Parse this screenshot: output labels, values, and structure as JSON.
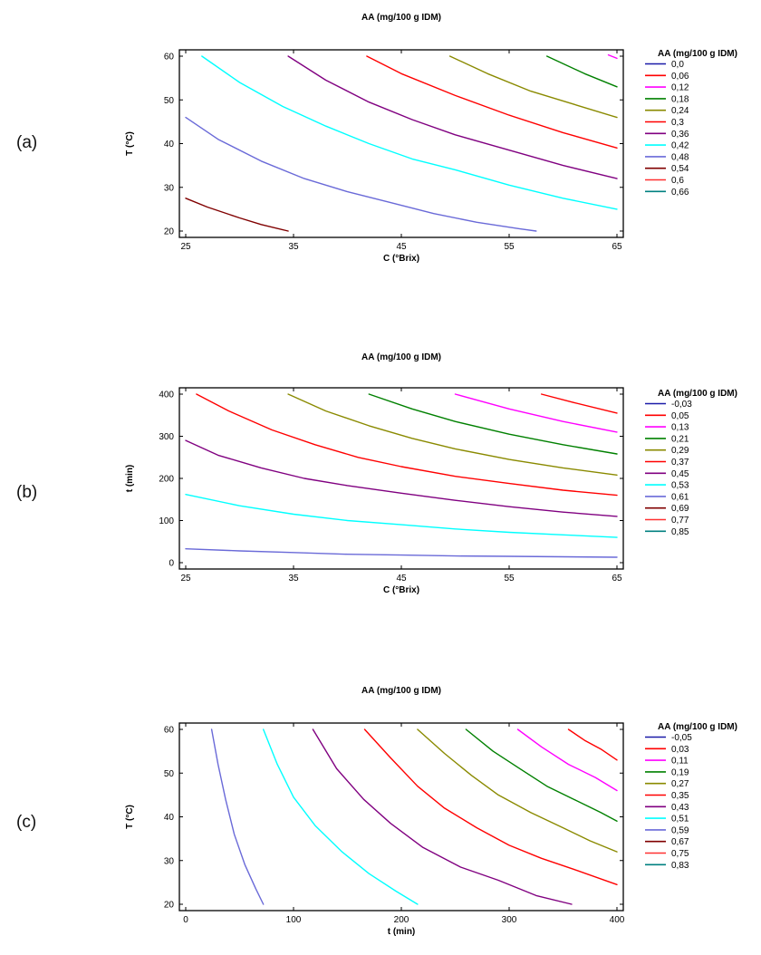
{
  "panel_labels": [
    "(a)",
    "(b)",
    "(c)"
  ],
  "chart_data": [
    {
      "type": "line",
      "title": "AA (mg/100 g IDM)",
      "xlabel": "C (°Brix)",
      "ylabel": "T (°C)",
      "xlim": [
        25,
        65
      ],
      "ylim": [
        20,
        60
      ],
      "xticks": [
        "25",
        "35",
        "45",
        "55",
        "65"
      ],
      "yticks": [
        "20",
        "30",
        "40",
        "50",
        "60"
      ],
      "legend_title": "AA (mg/100 g IDM)",
      "legend_position": "right",
      "legend": [
        {
          "label": "0,0",
          "color": "#1a1aa8"
        },
        {
          "label": "0,06",
          "color": "#ff0000"
        },
        {
          "label": "0,12",
          "color": "#ff00ff"
        },
        {
          "label": "0,18",
          "color": "#008000"
        },
        {
          "label": "0,24",
          "color": "#8a8a00"
        },
        {
          "label": "0,3",
          "color": "#ff0000"
        },
        {
          "label": "0,36",
          "color": "#800080"
        },
        {
          "label": "0,42",
          "color": "#00ffff"
        },
        {
          "label": "0,48",
          "color": "#6a6ad8"
        },
        {
          "label": "0,54",
          "color": "#800000"
        },
        {
          "label": "0,6",
          "color": "#ff3030"
        },
        {
          "label": "0,66",
          "color": "#008080"
        }
      ],
      "series": [
        {
          "name": "0,12",
          "color": "#ff00ff",
          "x": [
            64.2,
            65
          ],
          "y": [
            60.3,
            59.5
          ]
        },
        {
          "name": "0,18",
          "color": "#008000",
          "x": [
            58.5,
            62,
            65
          ],
          "y": [
            60,
            56,
            53
          ]
        },
        {
          "name": "0,24",
          "color": "#8a8a00",
          "x": [
            49.5,
            53,
            57,
            61,
            65
          ],
          "y": [
            60,
            56,
            52,
            49,
            46
          ]
        },
        {
          "name": "0,3",
          "color": "#ff0000",
          "x": [
            41.8,
            45,
            50,
            55,
            60,
            65
          ],
          "y": [
            60,
            56,
            51,
            46.5,
            42.5,
            39
          ]
        },
        {
          "name": "0,36",
          "color": "#800080",
          "x": [
            34.5,
            38,
            42,
            46,
            50,
            55,
            60,
            65
          ],
          "y": [
            60,
            54.5,
            49.5,
            45.5,
            42,
            38.5,
            35,
            32
          ]
        },
        {
          "name": "0,42",
          "color": "#00ffff",
          "x": [
            26.5,
            30,
            34,
            38,
            42,
            46,
            50,
            55,
            60,
            65
          ],
          "y": [
            60,
            54,
            48.5,
            44,
            40,
            36.5,
            34,
            30.5,
            27.5,
            25
          ]
        },
        {
          "name": "0,48",
          "color": "#6a6ad8",
          "x": [
            25,
            28,
            32,
            36,
            40,
            44,
            48,
            52,
            56,
            57.5
          ],
          "y": [
            46,
            41,
            36,
            32,
            29,
            26.5,
            24,
            22,
            20.5,
            20
          ]
        },
        {
          "name": "0,54",
          "color": "#800000",
          "x": [
            25,
            27,
            30,
            32,
            34.5
          ],
          "y": [
            27.5,
            25.5,
            23,
            21.5,
            20
          ]
        }
      ]
    },
    {
      "type": "line",
      "title": "AA (mg/100 g IDM)",
      "xlabel": "C (°Brix)",
      "ylabel": "t (min)",
      "xlim": [
        25,
        65
      ],
      "ylim": [
        0,
        400
      ],
      "xticks": [
        "25",
        "35",
        "45",
        "55",
        "65"
      ],
      "yticks": [
        "0",
        "100",
        "200",
        "300",
        "400"
      ],
      "legend_title": "AA (mg/100 g IDM)",
      "legend_position": "right",
      "legend": [
        {
          "label": "-0,03",
          "color": "#1a1aa8"
        },
        {
          "label": "0,05",
          "color": "#ff0000"
        },
        {
          "label": "0,13",
          "color": "#ff00ff"
        },
        {
          "label": "0,21",
          "color": "#008000"
        },
        {
          "label": "0,29",
          "color": "#8a8a00"
        },
        {
          "label": "0,37",
          "color": "#ff0000"
        },
        {
          "label": "0,45",
          "color": "#800080"
        },
        {
          "label": "0,53",
          "color": "#00ffff"
        },
        {
          "label": "0,61",
          "color": "#6a6ad8"
        },
        {
          "label": "0,69",
          "color": "#800000"
        },
        {
          "label": "0,77",
          "color": "#ff3030"
        },
        {
          "label": "0,85",
          "color": "#008080"
        }
      ],
      "series": [
        {
          "name": "0,05",
          "color": "#ff0000",
          "x": [
            58,
            61,
            65
          ],
          "y": [
            400,
            380,
            355
          ]
        },
        {
          "name": "0,13",
          "color": "#ff00ff",
          "x": [
            50,
            55,
            60,
            65
          ],
          "y": [
            400,
            365,
            335,
            310
          ]
        },
        {
          "name": "0,21",
          "color": "#008000",
          "x": [
            42,
            46,
            50,
            55,
            60,
            65
          ],
          "y": [
            400,
            365,
            335,
            305,
            280,
            258
          ]
        },
        {
          "name": "0,29",
          "color": "#8a8a00",
          "x": [
            34.5,
            38,
            42,
            46,
            50,
            55,
            60,
            65
          ],
          "y": [
            400,
            360,
            325,
            295,
            270,
            245,
            225,
            208
          ]
        },
        {
          "name": "0,37",
          "color": "#ff0000",
          "x": [
            26,
            29,
            33,
            37,
            41,
            45,
            50,
            55,
            60,
            65
          ],
          "y": [
            400,
            360,
            315,
            280,
            250,
            228,
            205,
            188,
            172,
            160
          ]
        },
        {
          "name": "0,45",
          "color": "#800080",
          "x": [
            25,
            28,
            32,
            36,
            40,
            45,
            50,
            55,
            60,
            65
          ],
          "y": [
            290,
            255,
            225,
            200,
            183,
            165,
            148,
            133,
            120,
            110
          ]
        },
        {
          "name": "0,53",
          "color": "#00ffff",
          "x": [
            25,
            30,
            35,
            40,
            45,
            50,
            55,
            60,
            65
          ],
          "y": [
            162,
            135,
            115,
            100,
            90,
            80,
            72,
            66,
            60
          ]
        },
        {
          "name": "0,61",
          "color": "#6a6ad8",
          "x": [
            25,
            30,
            35,
            40,
            45,
            50,
            55,
            60,
            65
          ],
          "y": [
            33,
            28,
            24,
            20,
            18,
            16,
            15,
            14,
            13
          ]
        }
      ]
    },
    {
      "type": "line",
      "title": "AA (mg/100 g IDM)",
      "xlabel": "t (min)",
      "ylabel": "T (°C)",
      "xlim": [
        0,
        400
      ],
      "ylim": [
        20,
        60
      ],
      "xticks": [
        "0",
        "100",
        "200",
        "300",
        "400"
      ],
      "yticks": [
        "20",
        "30",
        "40",
        "50",
        "60"
      ],
      "legend_title": "AA (mg/100 g IDM)",
      "legend_position": "right",
      "legend": [
        {
          "label": "-0,05",
          "color": "#1a1aa8"
        },
        {
          "label": "0,03",
          "color": "#ff0000"
        },
        {
          "label": "0,11",
          "color": "#ff00ff"
        },
        {
          "label": "0,19",
          "color": "#008000"
        },
        {
          "label": "0,27",
          "color": "#8a8a00"
        },
        {
          "label": "0,35",
          "color": "#ff0000"
        },
        {
          "label": "0,43",
          "color": "#800080"
        },
        {
          "label": "0,51",
          "color": "#00ffff"
        },
        {
          "label": "0,59",
          "color": "#6a6ad8"
        },
        {
          "label": "0,67",
          "color": "#800000"
        },
        {
          "label": "0,75",
          "color": "#ff3030"
        },
        {
          "label": "0,83",
          "color": "#008080"
        }
      ],
      "series": [
        {
          "name": "0,03",
          "color": "#ff0000",
          "x": [
            355,
            370,
            385,
            400
          ],
          "y": [
            60,
            57.5,
            55.5,
            53
          ]
        },
        {
          "name": "0,11",
          "color": "#ff00ff",
          "x": [
            308,
            330,
            355,
            380,
            400
          ],
          "y": [
            60,
            56,
            52,
            49,
            46
          ]
        },
        {
          "name": "0,19",
          "color": "#008000",
          "x": [
            260,
            285,
            310,
            335,
            360,
            385,
            400
          ],
          "y": [
            60,
            55,
            51,
            47,
            44,
            41,
            39
          ]
        },
        {
          "name": "0,27",
          "color": "#8a8a00",
          "x": [
            215,
            240,
            265,
            290,
            320,
            350,
            375,
            400
          ],
          "y": [
            60,
            54.5,
            49.5,
            45,
            41,
            37.5,
            34.5,
            32
          ]
        },
        {
          "name": "0,35",
          "color": "#ff0000",
          "x": [
            166,
            190,
            215,
            240,
            270,
            300,
            330,
            360,
            400
          ],
          "y": [
            60,
            53.5,
            47,
            42,
            37.5,
            33.5,
            30.5,
            28,
            24.5
          ]
        },
        {
          "name": "0,43",
          "color": "#800080",
          "x": [
            118,
            140,
            165,
            190,
            220,
            255,
            290,
            325,
            358
          ],
          "y": [
            60,
            51,
            44,
            38.5,
            33,
            28.5,
            25.5,
            22,
            20
          ]
        },
        {
          "name": "0,51",
          "color": "#00ffff",
          "x": [
            72,
            85,
            100,
            120,
            145,
            170,
            195,
            215
          ],
          "y": [
            60,
            52,
            44.5,
            38,
            32,
            27,
            23,
            20
          ]
        },
        {
          "name": "0,59",
          "color": "#6a6ad8",
          "x": [
            24,
            30,
            37,
            45,
            55,
            65,
            72
          ],
          "y": [
            60,
            52,
            44,
            36,
            29,
            23.5,
            20
          ]
        }
      ]
    }
  ]
}
